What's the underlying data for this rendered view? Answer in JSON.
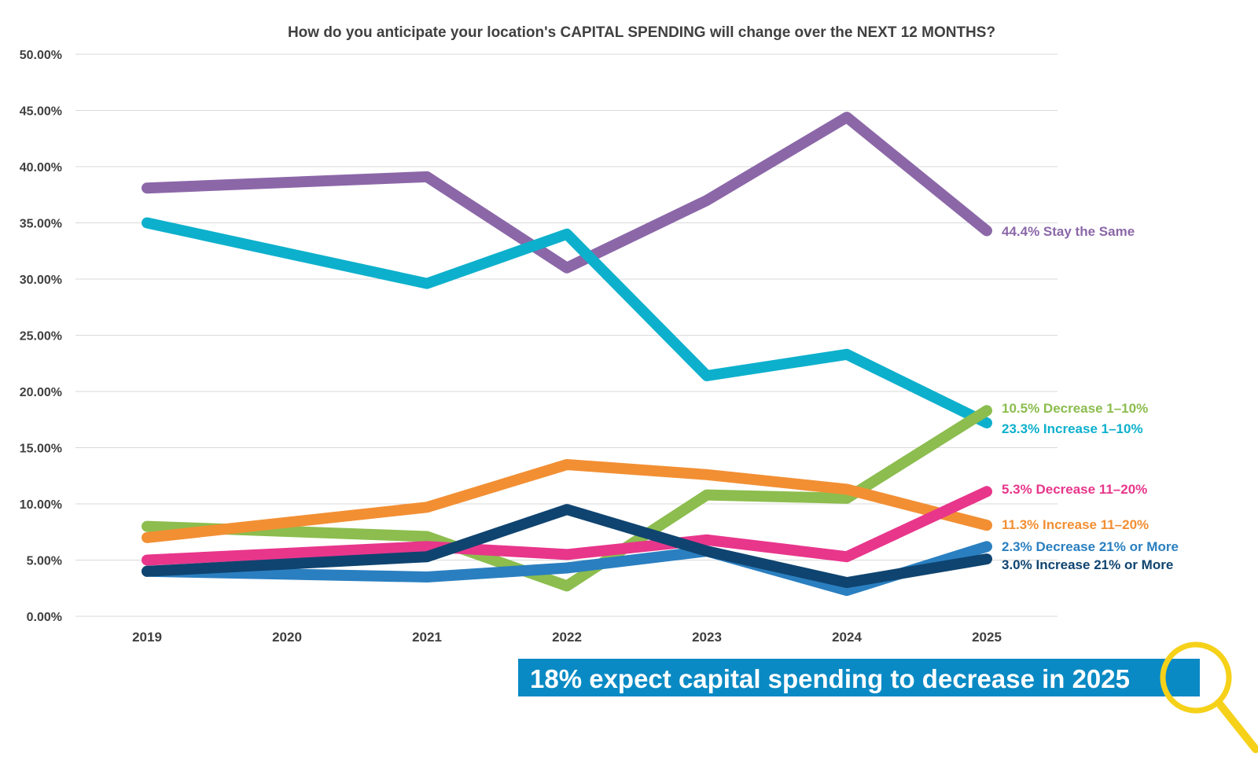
{
  "chart_data": {
    "type": "line",
    "title": "How do you anticipate your location's CAPITAL SPENDING will change over the NEXT 12 MONTHS?",
    "xlabel": "",
    "ylabel": "",
    "categories": [
      "2019",
      "2020",
      "2021",
      "2022",
      "2023",
      "2024",
      "2025"
    ],
    "ylim": [
      0,
      50
    ],
    "yticks": [
      0,
      5,
      10,
      15,
      20,
      25,
      30,
      35,
      40,
      45,
      50
    ],
    "ytick_labels": [
      "0.00%",
      "5.00%",
      "10.00%",
      "15.00%",
      "20.00%",
      "25.00%",
      "30.00%",
      "35.00%",
      "40.00%",
      "45.00%",
      "50.00%"
    ],
    "grid": true,
    "series": [
      {
        "name": "Stay the Same",
        "label": "44.4% Stay the Same",
        "color": "#8B67A8",
        "points": [
          [
            "2019",
            38.1
          ],
          [
            "2021",
            39.1
          ],
          [
            "2022",
            31.0
          ],
          [
            "2023",
            37.0
          ],
          [
            "2024",
            44.4
          ],
          [
            "2025",
            34.3
          ]
        ]
      },
      {
        "name": "Increase 1–10%",
        "label": "23.3% Increase 1–10%",
        "color": "#0DB0CC",
        "points": [
          [
            "2019",
            35.0
          ],
          [
            "2021",
            29.6
          ],
          [
            "2022",
            34.0
          ],
          [
            "2023",
            21.4
          ],
          [
            "2024",
            23.3
          ],
          [
            "2025",
            17.2
          ]
        ]
      },
      {
        "name": "Decrease 1–10%",
        "label": "10.5% Decrease 1–10%",
        "color": "#8CBD4E",
        "points": [
          [
            "2019",
            8.0
          ],
          [
            "2021",
            7.1
          ],
          [
            "2022",
            2.7
          ],
          [
            "2023",
            10.8
          ],
          [
            "2024",
            10.5
          ],
          [
            "2025",
            18.3
          ]
        ]
      },
      {
        "name": "Increase 11–20%",
        "label": "11.3% Increase 11–20%",
        "color": "#F28F33",
        "points": [
          [
            "2019",
            7.0
          ],
          [
            "2021",
            9.7
          ],
          [
            "2022",
            13.5
          ],
          [
            "2023",
            12.6
          ],
          [
            "2024",
            11.3
          ],
          [
            "2025",
            8.1
          ]
        ]
      },
      {
        "name": "Decrease 11–20%",
        "label": "5.3% Decrease 11–20%",
        "color": "#E8368B",
        "points": [
          [
            "2019",
            5.0
          ],
          [
            "2021",
            6.2
          ],
          [
            "2022",
            5.5
          ],
          [
            "2023",
            6.8
          ],
          [
            "2024",
            5.3
          ],
          [
            "2025",
            11.1
          ]
        ]
      },
      {
        "name": "Decrease 21% or More",
        "label": "2.3% Decrease 21% or More",
        "color": "#2A7FC0",
        "points": [
          [
            "2019",
            4.0
          ],
          [
            "2021",
            3.5
          ],
          [
            "2022",
            4.3
          ],
          [
            "2023",
            5.8
          ],
          [
            "2024",
            2.3
          ],
          [
            "2025",
            6.2
          ]
        ]
      },
      {
        "name": "Increase 21% or More",
        "label": "3.0% Increase 21% or More",
        "color": "#0F4470",
        "points": [
          [
            "2019",
            4.0
          ],
          [
            "2021",
            5.3
          ],
          [
            "2022",
            9.5
          ],
          [
            "2023",
            5.8
          ],
          [
            "2024",
            3.0
          ],
          [
            "2025",
            5.1
          ]
        ]
      }
    ]
  },
  "callout": {
    "text": "18% expect capital spending to decrease in 2025",
    "background": "#0A8AC4",
    "magnifier_color": "#F5D119",
    "magnifier_icon": "magnifier-icon"
  }
}
